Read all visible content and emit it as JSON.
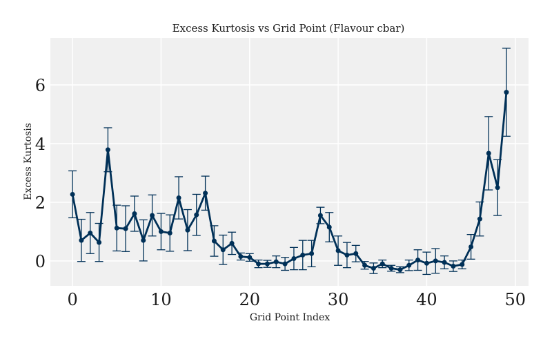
{
  "chart_data": {
    "type": "line",
    "title": "Excess Kurtosis vs Grid Point (Flavour cbar)",
    "xlabel": "Grid Point Index",
    "ylabel": "Excess Kurtosis",
    "xlim": [
      -2.5,
      51.5
    ],
    "ylim": [
      -0.85,
      7.6
    ],
    "xticks": [
      0,
      10,
      20,
      30,
      40,
      50
    ],
    "yticks": [
      0,
      2,
      4,
      6
    ],
    "grid": true,
    "colors": {
      "series": "#003057",
      "plot_bg": "#f0f0f0",
      "grid": "#ffffff"
    },
    "x": [
      0,
      1,
      2,
      3,
      4,
      5,
      6,
      7,
      8,
      9,
      10,
      11,
      12,
      13,
      14,
      15,
      16,
      17,
      18,
      19,
      20,
      21,
      22,
      23,
      24,
      25,
      26,
      27,
      28,
      29,
      30,
      31,
      32,
      33,
      34,
      35,
      36,
      37,
      38,
      39,
      40,
      41,
      42,
      43,
      44,
      45,
      46,
      47,
      48,
      49
    ],
    "series": [
      {
        "values": [
          2.27,
          0.7,
          0.95,
          0.63,
          3.79,
          1.12,
          1.1,
          1.61,
          0.7,
          1.55,
          1.0,
          0.95,
          2.15,
          1.05,
          1.57,
          2.31,
          0.68,
          0.38,
          0.6,
          0.15,
          0.12,
          -0.1,
          -0.1,
          -0.03,
          -0.1,
          0.08,
          0.2,
          0.25,
          1.55,
          1.15,
          0.35,
          0.2,
          0.25,
          -0.15,
          -0.25,
          -0.1,
          -0.25,
          -0.3,
          -0.15,
          0.03,
          -0.08,
          0.0,
          -0.05,
          -0.18,
          -0.12,
          0.48,
          1.43,
          3.67,
          2.5,
          5.75
        ],
        "errors": [
          0.8,
          0.72,
          0.7,
          0.65,
          0.75,
          0.78,
          0.78,
          0.6,
          0.7,
          0.7,
          0.62,
          0.62,
          0.72,
          0.7,
          0.7,
          0.58,
          0.52,
          0.5,
          0.38,
          0.12,
          0.13,
          0.13,
          0.12,
          0.2,
          0.22,
          0.38,
          0.5,
          0.45,
          0.28,
          0.5,
          0.5,
          0.43,
          0.28,
          0.13,
          0.18,
          0.13,
          0.1,
          0.1,
          0.18,
          0.35,
          0.38,
          0.42,
          0.22,
          0.18,
          0.15,
          0.42,
          0.58,
          1.25,
          0.95,
          1.5
        ]
      }
    ]
  }
}
